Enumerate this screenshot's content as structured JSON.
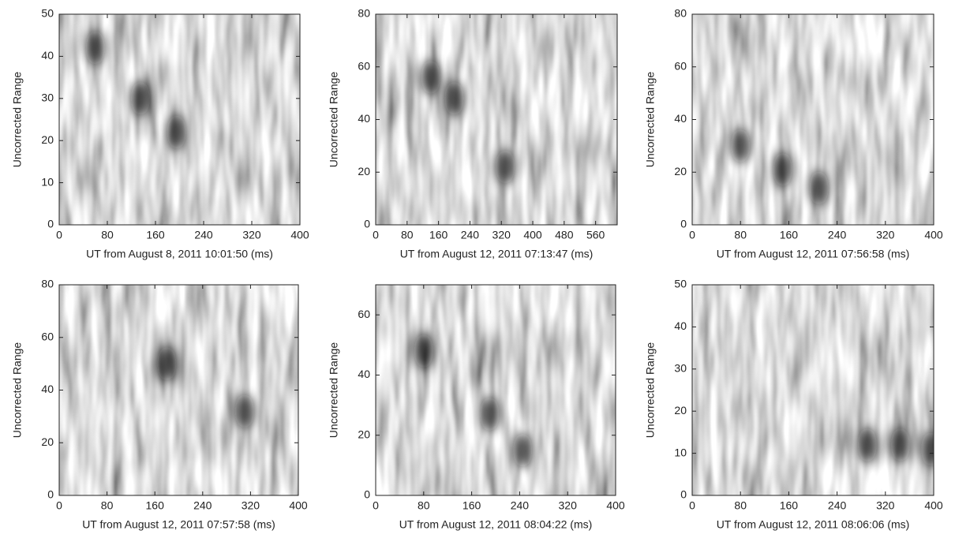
{
  "chart_data": [
    {
      "type": "heatmap",
      "x_label": "UT from August 8, 2011 10:01:50 (ms)",
      "y_label": "Uncorrected Range",
      "xlim": [
        0,
        400
      ],
      "xticks": [
        0,
        80,
        160,
        240,
        320,
        400
      ],
      "ylim": [
        0,
        50
      ],
      "yticks": [
        0,
        10,
        20,
        30,
        40,
        50
      ],
      "x": [
        60,
        135,
        195
      ],
      "y": [
        42,
        30,
        22
      ]
    },
    {
      "type": "heatmap",
      "x_label": "UT from August 12, 2011 07:13:47 (ms)",
      "y_label": "Uncorrected Range",
      "xlim": [
        0,
        615
      ],
      "xticks": [
        0,
        80,
        160,
        240,
        320,
        400,
        480,
        560
      ],
      "ylim": [
        0,
        80
      ],
      "yticks": [
        0,
        20,
        40,
        60,
        80
      ],
      "x": [
        140,
        200,
        330
      ],
      "y": [
        56,
        48,
        22
      ]
    },
    {
      "type": "heatmap",
      "x_label": "UT from August 12, 2011 07:56:58 (ms)",
      "y_label": "Uncorrected Range",
      "xlim": [
        0,
        400
      ],
      "xticks": [
        0,
        80,
        160,
        240,
        320,
        400
      ],
      "ylim": [
        0,
        80
      ],
      "yticks": [
        0,
        20,
        40,
        60,
        80
      ],
      "x": [
        80,
        150,
        210
      ],
      "y": [
        30,
        21,
        14
      ]
    },
    {
      "type": "heatmap",
      "x_label": "UT from August 12, 2011 07:57:58 (ms)",
      "y_label": "Uncorrected Range",
      "xlim": [
        0,
        400
      ],
      "xticks": [
        0,
        80,
        160,
        240,
        320,
        400
      ],
      "ylim": [
        0,
        80
      ],
      "yticks": [
        0,
        20,
        40,
        60,
        80
      ],
      "x": [
        180,
        310
      ],
      "y": [
        50,
        32
      ]
    },
    {
      "type": "heatmap",
      "x_label": "UT from August 12, 2011 08:04:22 (ms)",
      "y_label": "Uncorrected Range",
      "xlim": [
        0,
        400
      ],
      "xticks": [
        0,
        80,
        160,
        240,
        320,
        400
      ],
      "ylim": [
        0,
        70
      ],
      "yticks": [
        0,
        20,
        40,
        60
      ],
      "x": [
        80,
        190,
        245
      ],
      "y": [
        48,
        27,
        15
      ]
    },
    {
      "type": "heatmap",
      "x_label": "UT from August 12, 2011 08:06:06 (ms)",
      "y_label": "Uncorrected Range",
      "xlim": [
        0,
        400
      ],
      "xticks": [
        0,
        80,
        160,
        240,
        320,
        400
      ],
      "ylim": [
        0,
        50
      ],
      "yticks": [
        0,
        10,
        20,
        30,
        40,
        50
      ],
      "x": [
        290,
        345,
        395
      ],
      "y": [
        12,
        12,
        11
      ]
    }
  ]
}
